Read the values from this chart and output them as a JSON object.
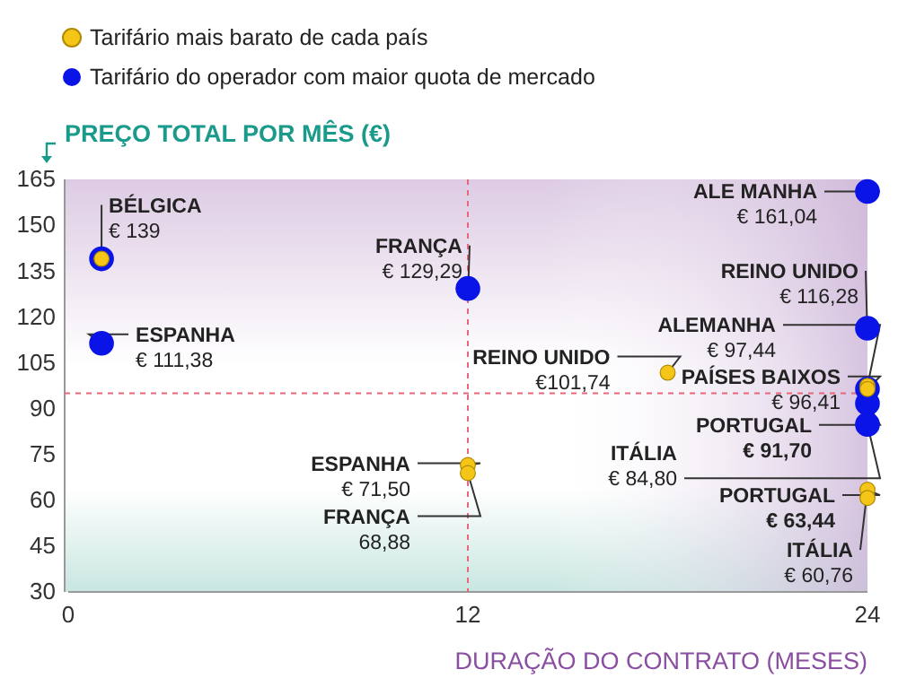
{
  "chart_data": {
    "type": "scatter",
    "xlabel": "DURAÇÃO DO CONTRATO (MESES)",
    "ylabel": "PREÇO TOTAL POR MÊS (€)",
    "xlim": [
      0,
      24
    ],
    "xticks": [
      0,
      12,
      24
    ],
    "ylim": [
      30,
      165
    ],
    "yticks": [
      30,
      45,
      60,
      75,
      90,
      105,
      120,
      135,
      150,
      165
    ],
    "grid": false,
    "legend": "top left",
    "marker": "circle",
    "series": [
      {
        "name": "Tarifário mais barato de cada país",
        "color": "#f5c518",
        "x": [
          1,
          12,
          12,
          18,
          24,
          24,
          24,
          24
        ],
        "values": [
          139,
          71.5,
          68.88,
          101.74,
          97.44,
          96.41,
          63.44,
          60.76
        ],
        "value_labels": [
          "€ 139",
          "€ 71,50",
          "68,88",
          "€101,74",
          "€ 97,44",
          "€ 96,41",
          "€ 63,44",
          "€ 60,76"
        ]
      },
      {
        "name": "Tarifário do operador com maior quota de mercado",
        "color": "#0a14e6",
        "x": [
          1,
          1,
          12,
          24,
          24,
          24,
          24,
          24
        ],
        "values": [
          139,
          111.38,
          129.29,
          161.04,
          116.28,
          96.41,
          91.7,
          84.8
        ],
        "value_labels": [
          null,
          "€ 111,38",
          "€ 129,29",
          "€ 161,04",
          "€ 116,28",
          null,
          "€ 91,70",
          "€ 84,80"
        ]
      }
    ],
    "ref_lines": [
      {
        "axis": "x",
        "value": 12,
        "color": "#e8677a",
        "line_style": "dashed"
      },
      {
        "axis": "y",
        "value": 95,
        "color": "#e8677a",
        "line_style": "dashed"
      }
    ],
    "annotations": [
      {
        "text": "BÉLGICA",
        "x": 1,
        "y": 139
      },
      {
        "text": "ESPANHA",
        "x": 1,
        "y": 111.38
      },
      {
        "text": "FRANÇA",
        "x": 12,
        "y": 129.29
      },
      {
        "text": "ESPANHA",
        "x": 12,
        "y": 71.5
      },
      {
        "text": "FRANÇA",
        "x": 12,
        "y": 68.88
      },
      {
        "text": "REINO UNIDO",
        "x": 18,
        "y": 101.74
      },
      {
        "text": "ALE MANHA",
        "x": 24,
        "y": 161.04
      },
      {
        "text": "REINO UNIDO",
        "x": 24,
        "y": 116.28
      },
      {
        "text": "ALEMANHA",
        "x": 24,
        "y": 97.44
      },
      {
        "text": "PAÍSES BAIXOS",
        "x": 24,
        "y": 96.41
      },
      {
        "text": "PORTUGAL",
        "x": 24,
        "y": 91.7
      },
      {
        "text": "ITÁLIA",
        "x": 24,
        "y": 84.8
      },
      {
        "text": "PORTUGAL",
        "x": 24,
        "y": 63.44
      },
      {
        "text": "ITÁLIA",
        "x": 24,
        "y": 60.76
      }
    ]
  }
}
